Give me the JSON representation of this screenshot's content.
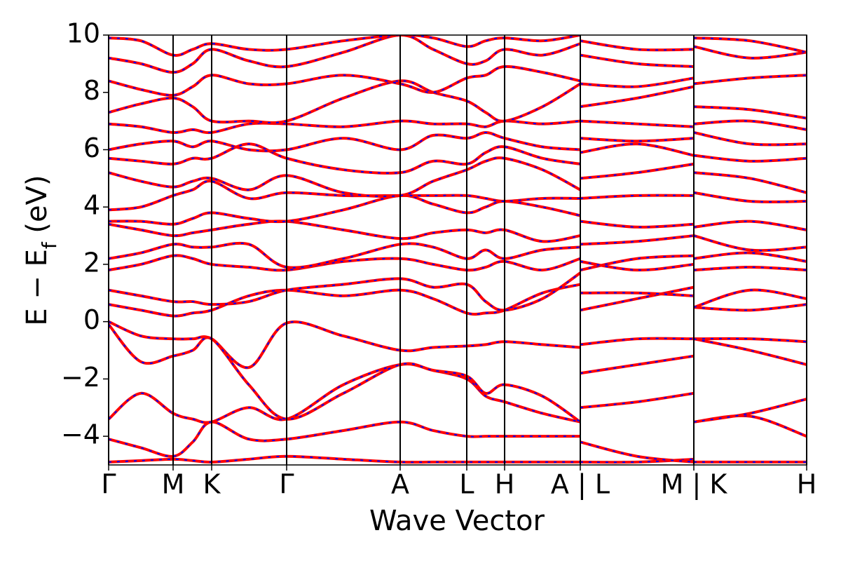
{
  "chart_data": {
    "type": "line",
    "ylabel": [
      "E − E",
      "f",
      " (eV)"
    ],
    "xlabel": "Wave Vector",
    "color": "#ff0000",
    "dash_color": "#0000ff",
    "grid": "x",
    "xlim": [
      0,
      9.96
    ],
    "ylim": [
      -5,
      10
    ],
    "xticks": [
      {
        "value": 0,
        "label": "Γ"
      },
      {
        "value": 0.92,
        "label": "M"
      },
      {
        "value": 1.47,
        "label": "K"
      },
      {
        "value": 2.54,
        "label": "Γ"
      },
      {
        "value": 4.16,
        "label": "A"
      },
      {
        "value": 5.11,
        "label": "L"
      },
      {
        "value": 5.65,
        "label": "H"
      },
      {
        "value": 6.73,
        "label": "A | L"
      },
      {
        "value": 8.35,
        "label": "M | K"
      },
      {
        "value": 9.96,
        "label": "H"
      }
    ],
    "yticks": [
      {
        "value": -4,
        "label": "−4"
      },
      {
        "value": -2,
        "label": "−2"
      },
      0,
      2,
      4,
      6,
      8,
      10
    ],
    "x": [
      0,
      0.46,
      0.92,
      1.2,
      1.47,
      2.0,
      2.54,
      3.35,
      4.16,
      4.63,
      5.11,
      5.38,
      5.65,
      6.19,
      6.73,
      6.73,
      6.73,
      7.54,
      8.35,
      8.35,
      8.35,
      9.15,
      9.96
    ],
    "series": [
      {
        "values": [
          -4.9,
          -4.85,
          -4.8,
          -4.85,
          -4.9,
          -4.8,
          -4.7,
          -4.8,
          -4.9,
          -4.9,
          -4.9,
          -4.9,
          -4.9,
          -4.9,
          -4.9,
          null,
          -4.9,
          -4.9,
          -4.8,
          null,
          -4.9,
          -4.9,
          -4.9
        ]
      },
      {
        "values": [
          -4.1,
          -4.4,
          -4.7,
          -4.2,
          -3.5,
          -4.1,
          -4.1,
          -3.8,
          -3.5,
          -3.8,
          -4.0,
          -4.0,
          -4.0,
          -4.0,
          -4.0,
          null,
          -4.2,
          -4.7,
          -4.9,
          null,
          -3.5,
          -3.3,
          -4.0
        ]
      },
      {
        "values": [
          -3.4,
          -2.5,
          -3.2,
          -3.4,
          -3.5,
          -3.0,
          -3.4,
          -2.2,
          -1.5,
          -1.7,
          -2.0,
          -2.6,
          -2.8,
          -3.2,
          -3.5,
          null,
          -3.0,
          -2.8,
          -2.5,
          null,
          -3.5,
          -3.2,
          -2.7
        ]
      },
      {
        "values": [
          0.0,
          -0.5,
          -0.6,
          -0.6,
          -0.6,
          -1.6,
          -0.05,
          -0.5,
          -1.0,
          -0.9,
          -0.85,
          -0.8,
          -0.7,
          -0.8,
          -0.9,
          null,
          -0.8,
          -0.6,
          -0.6,
          null,
          -0.6,
          -0.6,
          -0.7
        ]
      },
      {
        "values": [
          -0.1,
          -1.4,
          -1.2,
          -1.0,
          -0.6,
          -2.2,
          -3.4,
          -2.5,
          -1.5,
          -1.7,
          -1.9,
          -2.5,
          -2.2,
          -2.6,
          -3.5,
          null,
          -1.8,
          -1.5,
          -1.2,
          null,
          -0.6,
          -1.0,
          -1.5
        ]
      },
      {
        "values": [
          0.6,
          0.4,
          0.2,
          0.3,
          0.4,
          0.9,
          1.1,
          0.9,
          1.1,
          0.8,
          0.3,
          0.3,
          0.4,
          1.0,
          1.3,
          null,
          0.4,
          0.8,
          1.2,
          null,
          0.5,
          0.4,
          0.6
        ]
      },
      {
        "values": [
          1.1,
          0.9,
          0.7,
          0.7,
          0.6,
          0.7,
          1.1,
          1.3,
          1.5,
          1.2,
          1.3,
          0.7,
          0.4,
          0.8,
          1.7,
          null,
          1.0,
          1.0,
          0.9,
          null,
          0.5,
          1.1,
          0.8
        ]
      },
      {
        "values": [
          1.8,
          2.0,
          2.3,
          2.2,
          2.0,
          1.9,
          1.8,
          2.1,
          2.2,
          2.0,
          1.8,
          1.9,
          2.1,
          1.8,
          2.2,
          null,
          1.8,
          2.2,
          2.3,
          null,
          2.2,
          2.4,
          2.1
        ]
      },
      {
        "values": [
          2.2,
          2.4,
          2.7,
          2.6,
          2.6,
          2.7,
          1.9,
          2.2,
          2.7,
          2.6,
          2.2,
          2.5,
          2.2,
          2.5,
          2.6,
          null,
          2.1,
          1.8,
          2.0,
          null,
          1.8,
          1.9,
          1.8
        ]
      },
      {
        "values": [
          3.4,
          3.2,
          3.0,
          3.1,
          3.2,
          3.4,
          3.5,
          3.2,
          2.9,
          3.1,
          3.2,
          3.1,
          3.2,
          2.8,
          3.0,
          null,
          2.7,
          2.8,
          3.0,
          null,
          3.0,
          2.5,
          2.6
        ]
      },
      {
        "values": [
          3.5,
          3.5,
          3.4,
          3.6,
          3.8,
          3.6,
          3.5,
          3.9,
          4.4,
          4.1,
          3.8,
          4.0,
          4.2,
          4.0,
          3.7,
          null,
          3.5,
          3.3,
          3.4,
          null,
          3.3,
          3.5,
          3.2
        ]
      },
      {
        "values": [
          3.9,
          4.0,
          4.4,
          4.6,
          4.9,
          4.3,
          4.5,
          4.4,
          4.4,
          4.4,
          4.4,
          4.3,
          4.2,
          4.3,
          4.3,
          null,
          4.3,
          4.4,
          4.4,
          null,
          4.5,
          4.2,
          4.2
        ]
      },
      {
        "values": [
          5.2,
          4.9,
          4.7,
          4.9,
          5.0,
          4.6,
          5.1,
          4.5,
          4.4,
          4.9,
          5.3,
          5.6,
          5.7,
          5.3,
          4.6,
          null,
          5.0,
          5.2,
          5.5,
          null,
          5.2,
          5.0,
          4.5
        ]
      },
      {
        "values": [
          5.7,
          5.6,
          5.5,
          5.7,
          5.7,
          6.2,
          5.7,
          5.3,
          5.2,
          5.6,
          5.5,
          5.9,
          6.1,
          5.7,
          5.5,
          null,
          5.9,
          6.2,
          5.8,
          null,
          5.8,
          5.6,
          5.7
        ]
      },
      {
        "values": [
          6.0,
          6.2,
          6.3,
          6.1,
          6.3,
          6.0,
          6.0,
          6.4,
          6.0,
          6.5,
          6.4,
          6.6,
          6.4,
          6.1,
          6.0,
          null,
          6.4,
          6.3,
          6.4,
          null,
          6.6,
          6.2,
          6.2
        ]
      },
      {
        "values": [
          6.9,
          6.8,
          6.6,
          6.7,
          6.6,
          6.9,
          6.9,
          6.8,
          7.0,
          6.9,
          6.9,
          6.8,
          7.0,
          6.9,
          7.0,
          null,
          7.0,
          6.9,
          6.8,
          null,
          6.9,
          7.0,
          6.7
        ]
      },
      {
        "values": [
          7.3,
          7.6,
          7.8,
          7.5,
          7.0,
          7.0,
          7.0,
          7.8,
          8.4,
          8.0,
          7.7,
          7.3,
          7.0,
          7.5,
          8.3,
          null,
          7.5,
          7.8,
          8.2,
          null,
          7.5,
          7.4,
          7.1
        ]
      },
      {
        "values": [
          8.4,
          8.1,
          7.9,
          8.2,
          8.6,
          8.3,
          8.3,
          8.6,
          8.3,
          8.0,
          8.5,
          8.6,
          8.9,
          8.7,
          8.4,
          null,
          8.3,
          8.2,
          8.5,
          null,
          8.3,
          8.5,
          8.6
        ]
      },
      {
        "values": [
          9.2,
          9.0,
          8.7,
          9.0,
          9.5,
          9.1,
          8.9,
          9.4,
          10.0,
          9.5,
          9.0,
          9.1,
          9.5,
          9.3,
          9.7,
          null,
          9.3,
          9.0,
          8.9,
          null,
          9.6,
          9.2,
          9.4
        ]
      },
      {
        "values": [
          9.9,
          9.8,
          9.3,
          9.5,
          9.7,
          9.5,
          9.5,
          9.8,
          10.0,
          9.9,
          9.6,
          9.8,
          9.9,
          9.8,
          10.0,
          null,
          9.8,
          9.5,
          9.5,
          null,
          9.9,
          9.8,
          9.4
        ]
      }
    ]
  }
}
